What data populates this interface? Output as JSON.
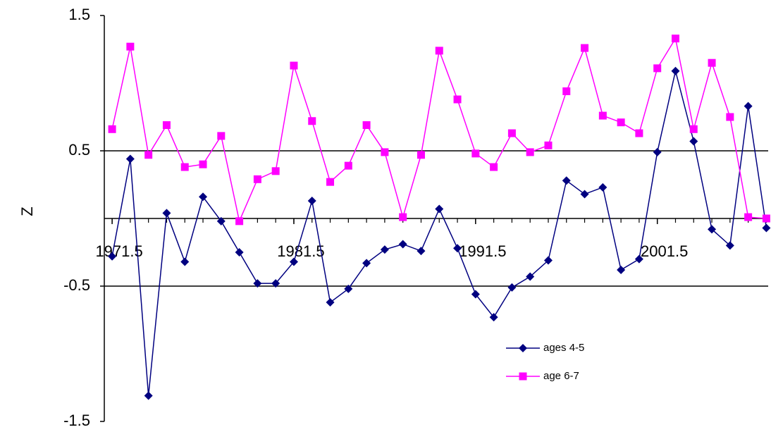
{
  "chart_data": {
    "type": "line",
    "y_label": "Z",
    "x": [
      1971.5,
      1972.5,
      1973.5,
      1974.5,
      1975.5,
      1976.5,
      1977.5,
      1978.5,
      1979.5,
      1980.5,
      1981.5,
      1982.5,
      1983.5,
      1984.5,
      1985.5,
      1986.5,
      1987.5,
      1988.5,
      1989.5,
      1990.5,
      1991.5,
      1992.5,
      1993.5,
      1994.5,
      1995.5,
      1996.5,
      1997.5,
      1998.5,
      1999.5,
      2000.5,
      2001.5,
      2002.5,
      2003.5,
      2004.5,
      2005.5,
      2006.5,
      2007.5
    ],
    "series": [
      {
        "name": "ages 4-5",
        "color": "#000080",
        "marker": "diamond",
        "values": [
          -0.28,
          0.44,
          -1.31,
          0.04,
          -0.32,
          0.16,
          -0.02,
          -0.25,
          -0.48,
          -0.48,
          -0.32,
          0.13,
          -0.62,
          -0.52,
          -0.33,
          -0.23,
          -0.19,
          -0.24,
          0.07,
          -0.22,
          -0.56,
          -0.73,
          -0.51,
          -0.43,
          -0.31,
          0.28,
          0.18,
          0.23,
          -0.38,
          -0.3,
          0.49,
          1.09,
          0.57,
          -0.08,
          -0.2,
          0.83,
          -0.07
        ]
      },
      {
        "name": "age 6-7",
        "color": "#ff00ff",
        "marker": "square",
        "values": [
          0.66,
          1.27,
          0.47,
          0.69,
          0.38,
          0.4,
          0.61,
          -0.02,
          0.29,
          0.35,
          1.13,
          0.72,
          0.27,
          0.39,
          0.69,
          0.49,
          0.01,
          0.47,
          1.24,
          0.88,
          0.48,
          0.38,
          0.63,
          0.49,
          0.54,
          0.94,
          1.26,
          0.76,
          0.71,
          0.63,
          1.11,
          1.33,
          0.66,
          1.15,
          0.75,
          0.01,
          0.0
        ]
      }
    ],
    "xlim": [
      1971.07,
      2007.6
    ],
    "xticks": [
      1971.5,
      1981.5,
      1991.5,
      2001.5
    ],
    "ylim": [
      -1.5,
      1.5
    ],
    "yticks": [
      -1.5,
      -0.5,
      0.5,
      1.5
    ],
    "grid": true
  }
}
